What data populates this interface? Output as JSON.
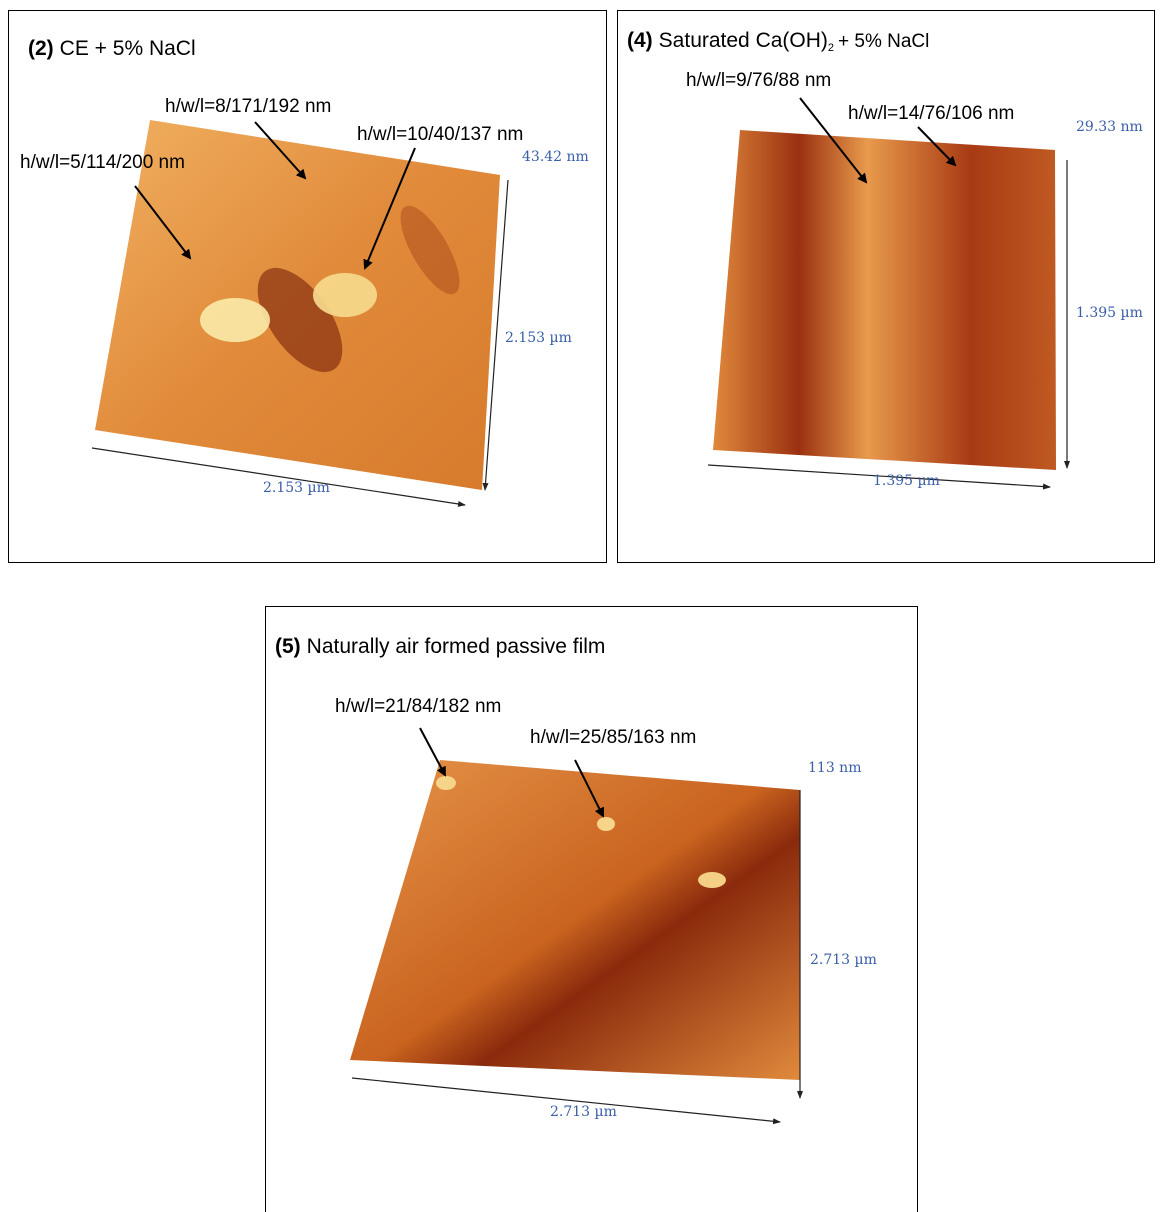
{
  "panels": [
    {
      "label": "(2)",
      "title": "CE + 5% NaCl",
      "annotations": [
        "h/w/l=8/171/192 nm",
        "h/w/l=5/114/200 nm",
        "h/w/l=10/40/137 nm"
      ],
      "z_scale": "43.42 nm",
      "y_scale": "2.153 µm",
      "x_scale": "2.153 µm"
    },
    {
      "label": "(4)",
      "title": {
        "text": "Saturated Ca(OH)",
        "subscript": "2",
        "suffix": "+ 5% NaCl"
      },
      "annotations": [
        "h/w/l=9/76/88 nm",
        "h/w/l=14/76/106 nm"
      ],
      "z_scale": "29.33 nm",
      "y_scale": "1.395 µm",
      "x_scale": "1.395 µm"
    },
    {
      "label": "(5)",
      "title": "Naturally air formed passive film",
      "annotations": [
        "h/w/l=21/84/182 nm",
        "h/w/l=25/85/163 nm"
      ],
      "z_scale": "113 nm",
      "y_scale": "2.713 µm",
      "x_scale": "2.713 µm"
    }
  ]
}
